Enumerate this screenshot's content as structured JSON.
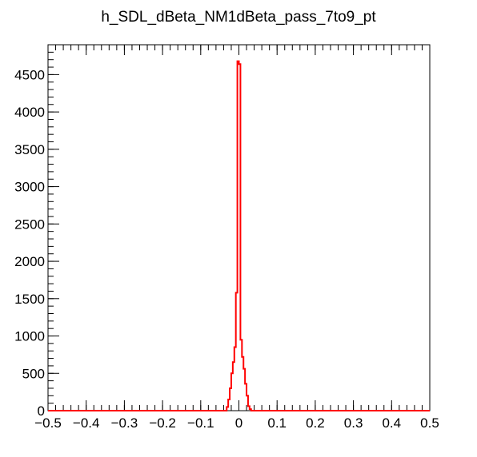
{
  "chart_data": {
    "type": "histogram",
    "title": "h_SDL_dBeta_NM1dBeta_pass_7to9_pt",
    "xlabel": "",
    "ylabel": "",
    "xlim": [
      -0.5,
      0.5
    ],
    "ylim": [
      0,
      4900
    ],
    "grid": false,
    "x_ticks": [
      -0.5,
      -0.4,
      -0.3,
      -0.2,
      -0.1,
      0,
      0.1,
      0.2,
      0.3,
      0.4,
      0.5
    ],
    "x_tick_labels": [
      "−0.5",
      "−0.4",
      "−0.3",
      "−0.2",
      "−0.1",
      "0",
      "0.1",
      "0.2",
      "0.3",
      "0.4",
      "0.5"
    ],
    "y_ticks": [
      0,
      500,
      1000,
      1500,
      2000,
      2500,
      3000,
      3500,
      4000,
      4500
    ],
    "y_tick_labels": [
      "0",
      "500",
      "1000",
      "1500",
      "2000",
      "2500",
      "3000",
      "3500",
      "4000",
      "4500"
    ],
    "series": [
      {
        "color": "#ff0000",
        "bin_edges": [
          -0.5,
          -0.032,
          -0.028,
          -0.024,
          -0.02,
          -0.016,
          -0.012,
          -0.008,
          -0.004,
          0.0,
          0.004,
          0.008,
          0.012,
          0.016,
          0.02,
          0.024,
          0.028,
          0.032,
          0.5
        ],
        "counts": [
          0,
          50,
          150,
          300,
          500,
          650,
          850,
          1580,
          4680,
          4640,
          950,
          720,
          560,
          360,
          200,
          60,
          20,
          0
        ]
      }
    ]
  }
}
